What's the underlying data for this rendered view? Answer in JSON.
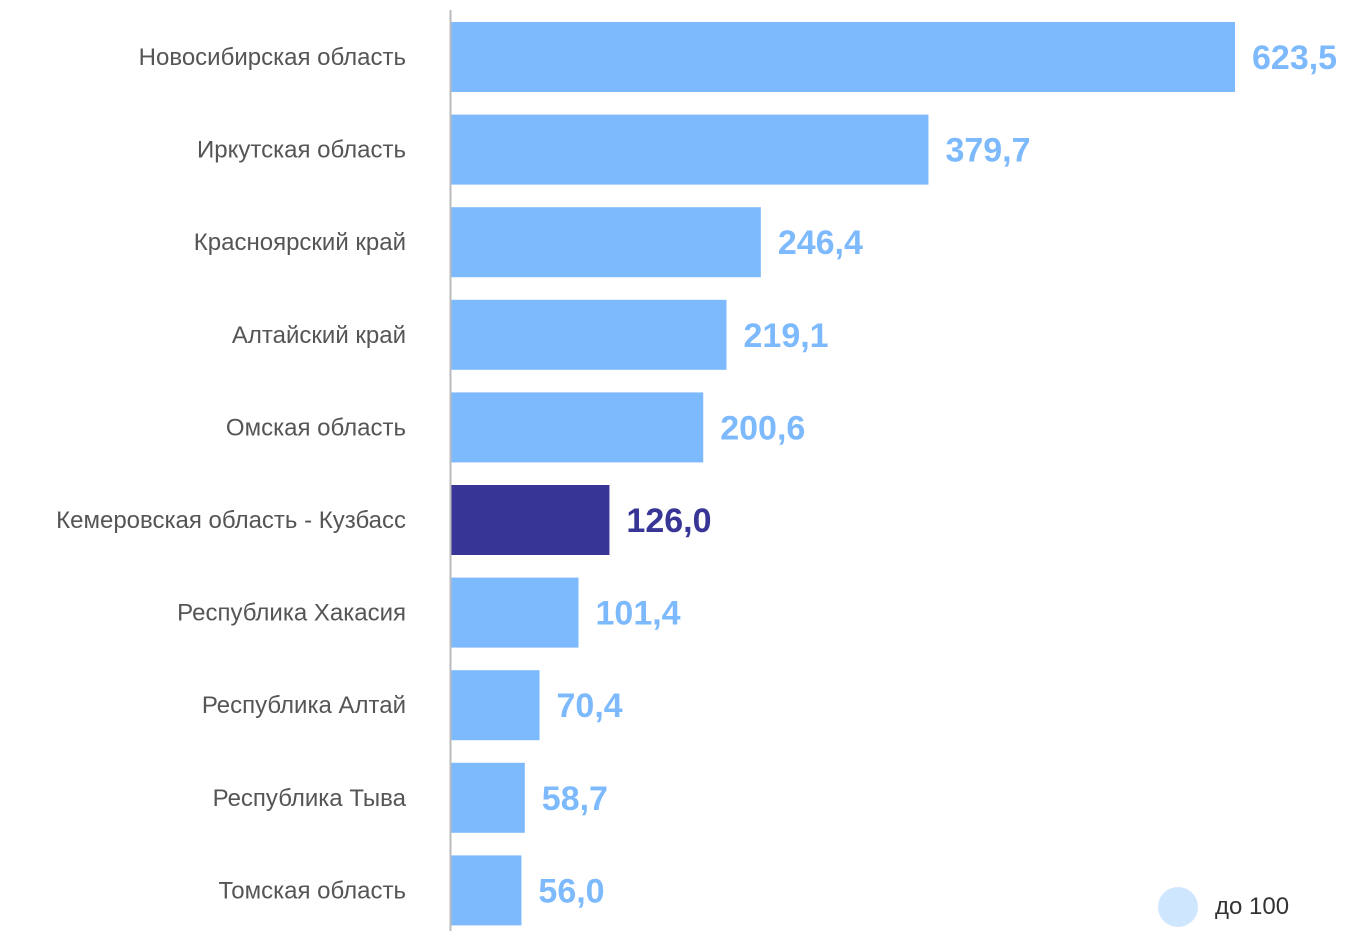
{
  "chart_data": {
    "type": "bar",
    "orientation": "horizontal",
    "categories": [
      "Новосибирская область",
      "Иркутская область",
      "Красноярский край",
      "Алтайский край",
      "Омская область",
      "Кемеровская область - Кузбасс",
      "Республика Хакасия",
      "Республика Алтай",
      "Республика Тыва",
      "Томская область"
    ],
    "values": [
      623.5,
      379.7,
      246.4,
      219.1,
      200.6,
      126.0,
      101.4,
      70.4,
      58.7,
      56.0
    ],
    "value_labels": [
      "623,5",
      "379,7",
      "246,4",
      "219,1",
      "200,6",
      "126,0",
      "101,4",
      "70,4",
      "58,7",
      "56,0"
    ],
    "highlight_category": "Кемеровская область - Кузбасс",
    "colors": {
      "bar": "#7db9fd",
      "highlight": "#373596",
      "axis": "#bbbbbb",
      "category_text": "#555555"
    },
    "xlim": [
      0,
      623.5
    ],
    "grid": false,
    "legend": {
      "placement": "bottom-right",
      "entries": [
        {
          "label": "до 100",
          "color": "#cfe6ff"
        }
      ]
    }
  }
}
